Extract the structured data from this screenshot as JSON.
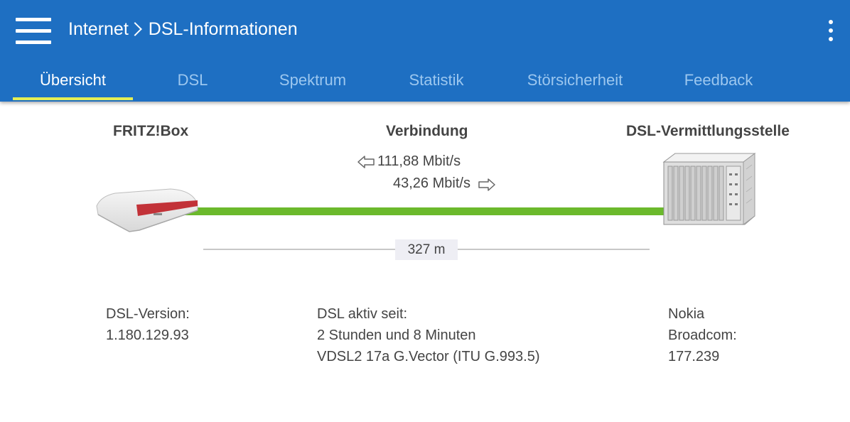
{
  "header": {
    "breadcrumb": {
      "parent": "Internet",
      "current": "DSL-Informationen"
    },
    "menu_icon": "hamburger-menu-icon",
    "more_icon": "kebab-menu-icon",
    "background_color": "#1e6fc2"
  },
  "tabs": [
    {
      "label": "Übersicht",
      "active": true
    },
    {
      "label": "DSL",
      "active": false
    },
    {
      "label": "Spektrum",
      "active": false
    },
    {
      "label": "Statistik",
      "active": false
    },
    {
      "label": "Störsicherheit",
      "active": false
    },
    {
      "label": "Feedback",
      "active": false
    }
  ],
  "overview": {
    "device_title": "FRITZ!Box",
    "connection_title": "Verbindung",
    "exchange_title": "DSL-Vermittlungsstelle",
    "downstream": "111,88 Mbit/s",
    "upstream": "43,26 Mbit/s",
    "distance": "327 m",
    "line_color": "#6bb92c"
  },
  "details": {
    "device": {
      "label": "DSL-Version:",
      "value": "1.180.129.93"
    },
    "connection": {
      "label": "DSL aktiv seit:",
      "duration": "2 Stunden und 8 Minuten",
      "mode": "VDSL2 17a G.Vector (ITU G.993.5)"
    },
    "exchange": {
      "vendor": "Nokia",
      "chipset": "Broadcom:",
      "version": "177.239"
    }
  }
}
